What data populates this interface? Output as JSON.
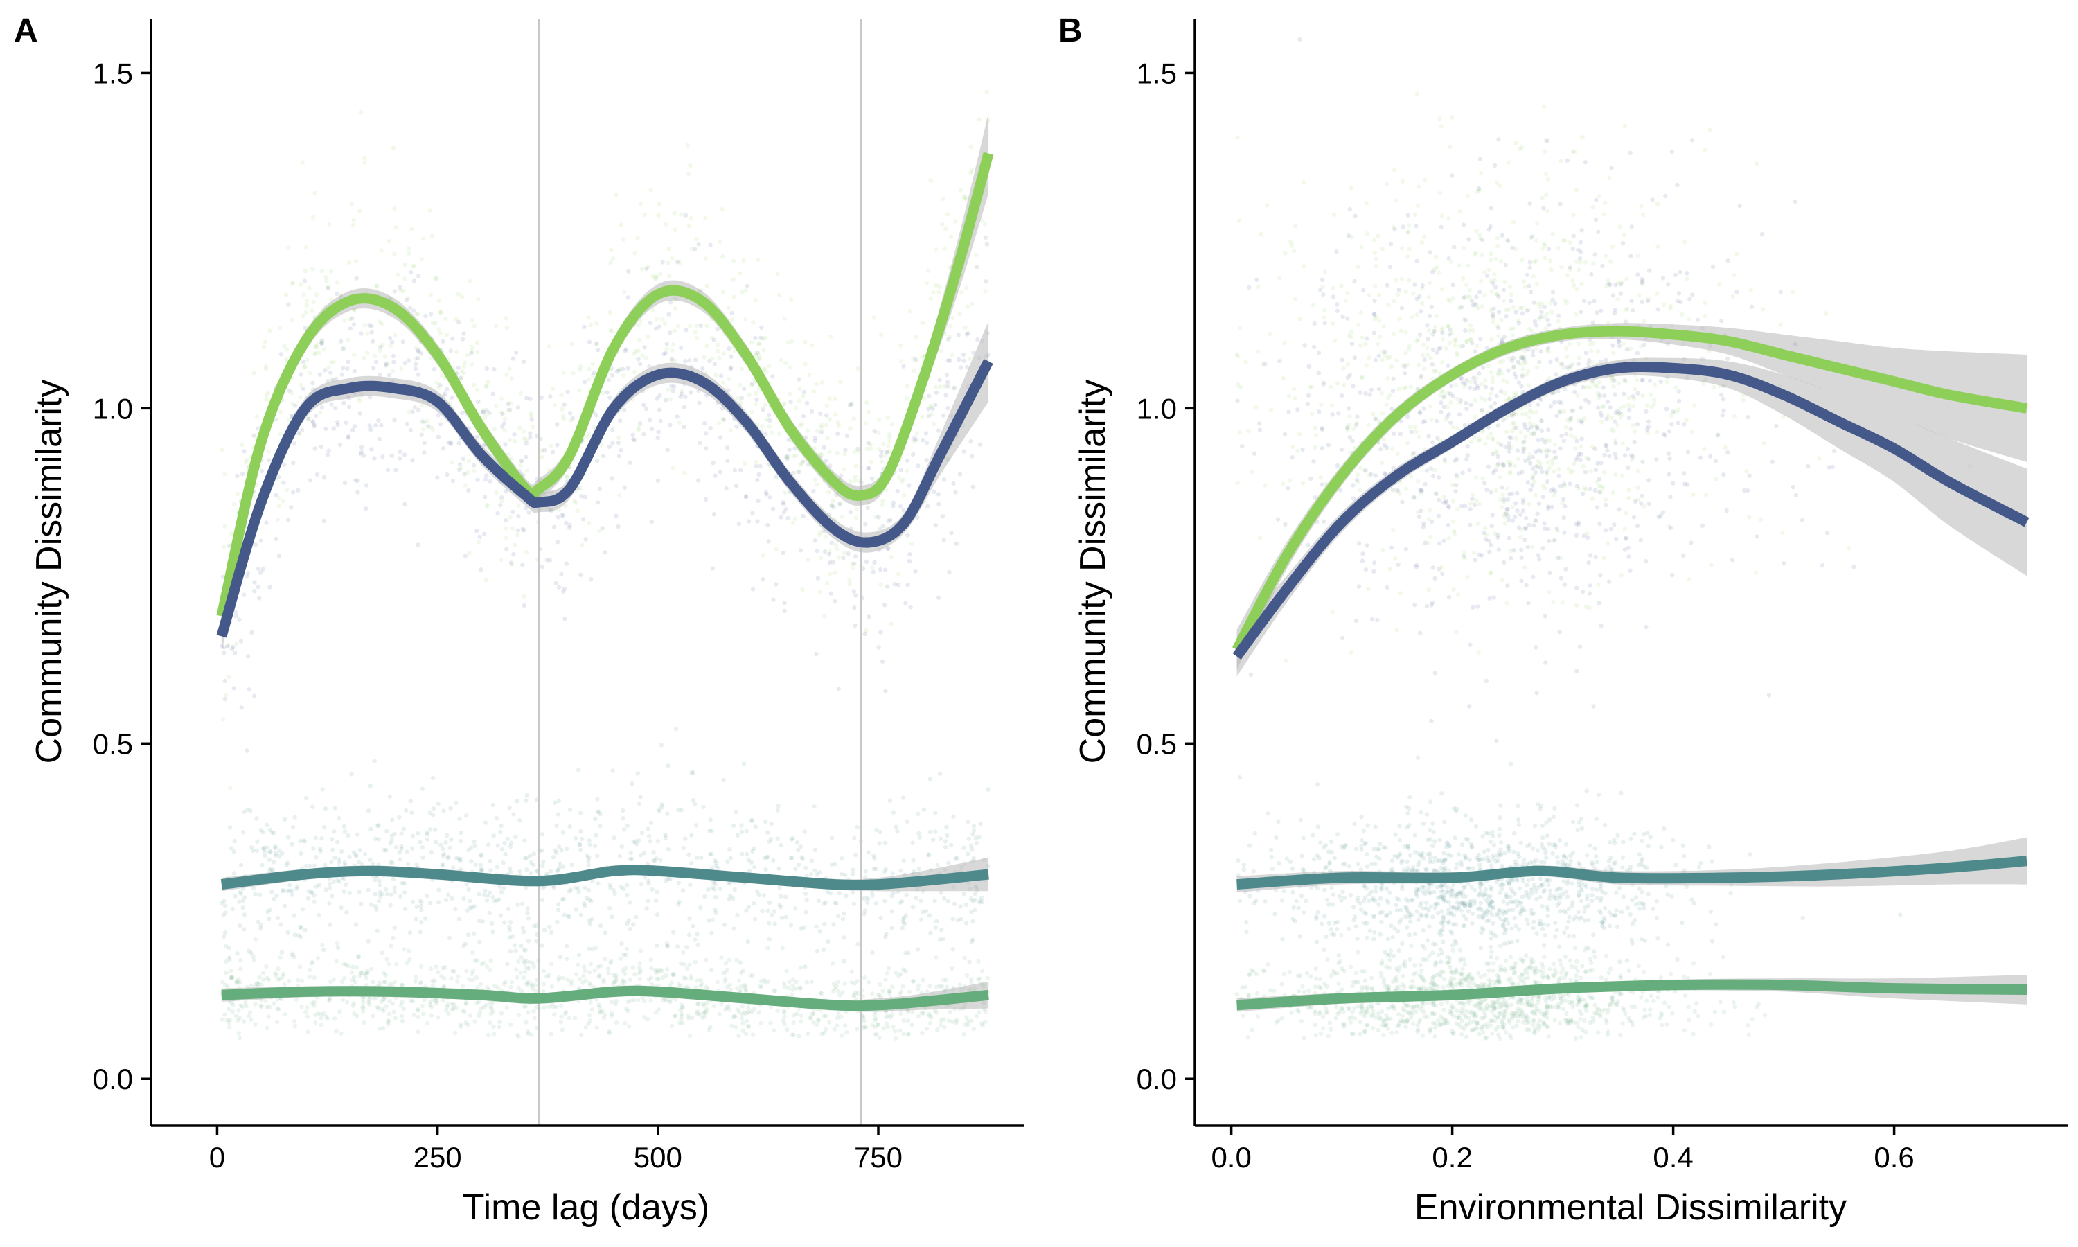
{
  "chart_data": [
    {
      "panel": "A",
      "type": "scatter",
      "xlabel": "Time lag (days)",
      "ylabel": "Community Dissimilarity",
      "xlim": [
        -75,
        915
      ],
      "ylim": [
        -0.07,
        1.58
      ],
      "xticks": [
        0,
        250,
        500,
        750
      ],
      "xtick_labels": [
        "0",
        "250",
        "500",
        "750"
      ],
      "yticks": [
        0.0,
        0.5,
        1.0,
        1.5
      ],
      "ytick_labels": [
        "0.0",
        "0.5",
        "1.0",
        "1.5"
      ],
      "vlines": [
        365,
        730
      ],
      "grid": false,
      "legend": "none",
      "series": [
        {
          "color": "#8ecf5a",
          "x": [
            5,
            50,
            100,
            150,
            200,
            250,
            300,
            350,
            365,
            400,
            450,
            500,
            550,
            600,
            650,
            700,
            730,
            760,
            800,
            840,
            875
          ],
          "y": [
            0.69,
            0.95,
            1.1,
            1.16,
            1.15,
            1.08,
            0.97,
            0.88,
            0.88,
            0.93,
            1.09,
            1.17,
            1.16,
            1.08,
            0.97,
            0.89,
            0.87,
            0.9,
            1.04,
            1.21,
            1.38
          ],
          "band": [
            0.02,
            0.02,
            0.015,
            0.015,
            0.015,
            0.015,
            0.015,
            0.015,
            0.015,
            0.015,
            0.015,
            0.015,
            0.015,
            0.015,
            0.015,
            0.015,
            0.015,
            0.015,
            0.02,
            0.04,
            0.06
          ],
          "cloud": {
            "center": "curve",
            "spread": 0.09,
            "count": 900
          }
        },
        {
          "color": "#44598a",
          "x": [
            5,
            50,
            100,
            150,
            200,
            250,
            300,
            350,
            365,
            400,
            450,
            500,
            550,
            600,
            650,
            700,
            740,
            780,
            820,
            875
          ],
          "y": [
            0.66,
            0.86,
            1.0,
            1.03,
            1.03,
            1.01,
            0.93,
            0.87,
            0.86,
            0.88,
            1.0,
            1.05,
            1.04,
            0.98,
            0.89,
            0.82,
            0.8,
            0.83,
            0.93,
            1.07
          ],
          "band": [
            0.02,
            0.02,
            0.015,
            0.015,
            0.015,
            0.015,
            0.015,
            0.015,
            0.015,
            0.015,
            0.015,
            0.015,
            0.015,
            0.015,
            0.015,
            0.015,
            0.015,
            0.015,
            0.03,
            0.06
          ],
          "cloud": {
            "center": "curve",
            "spread": 0.09,
            "count": 900
          }
        },
        {
          "color": "#4e8a8c",
          "x": [
            5,
            100,
            175,
            250,
            365,
            450,
            500,
            600,
            700,
            750,
            800,
            875
          ],
          "y": [
            0.29,
            0.305,
            0.31,
            0.305,
            0.295,
            0.31,
            0.31,
            0.3,
            0.29,
            0.29,
            0.295,
            0.305
          ],
          "band": [
            0.01,
            0.008,
            0.008,
            0.008,
            0.008,
            0.008,
            0.008,
            0.008,
            0.008,
            0.01,
            0.015,
            0.025
          ],
          "cloud": {
            "center": "curve",
            "spread": 0.06,
            "count": 1100
          }
        },
        {
          "color": "#65ad7c",
          "x": [
            5,
            100,
            200,
            300,
            365,
            450,
            500,
            600,
            700,
            750,
            800,
            875
          ],
          "y": [
            0.125,
            0.13,
            0.13,
            0.125,
            0.12,
            0.13,
            0.13,
            0.12,
            0.11,
            0.11,
            0.115,
            0.125
          ],
          "band": [
            0.01,
            0.008,
            0.008,
            0.008,
            0.008,
            0.008,
            0.008,
            0.008,
            0.008,
            0.01,
            0.012,
            0.02
          ],
          "cloud": {
            "center": "curve",
            "spread": 0.03,
            "count": 1100
          }
        }
      ]
    },
    {
      "panel": "B",
      "type": "scatter",
      "xlabel": "Environmental Dissimilarity",
      "ylabel": "Community Dissimilarity",
      "xlim": [
        -0.033,
        0.757
      ],
      "ylim": [
        -0.07,
        1.58
      ],
      "xticks": [
        0.0,
        0.2,
        0.4,
        0.6
      ],
      "xtick_labels": [
        "0.0",
        "0.2",
        "0.4",
        "0.6"
      ],
      "yticks": [
        0.0,
        0.5,
        1.0,
        1.5
      ],
      "ytick_labels": [
        "0.0",
        "0.5",
        "1.0",
        "1.5"
      ],
      "grid": false,
      "legend": "none",
      "series": [
        {
          "color": "#8ecf5a",
          "x": [
            0.005,
            0.05,
            0.1,
            0.15,
            0.2,
            0.25,
            0.3,
            0.35,
            0.4,
            0.45,
            0.5,
            0.55,
            0.6,
            0.65,
            0.72
          ],
          "y": [
            0.64,
            0.78,
            0.9,
            0.99,
            1.05,
            1.09,
            1.11,
            1.115,
            1.11,
            1.1,
            1.08,
            1.06,
            1.04,
            1.02,
            1.0
          ],
          "band": [
            0.03,
            0.02,
            0.015,
            0.012,
            0.01,
            0.01,
            0.01,
            0.012,
            0.015,
            0.02,
            0.03,
            0.04,
            0.05,
            0.065,
            0.08
          ],
          "cloud": {
            "center": [
              0.24,
              1.05
            ],
            "spreadX": 0.1,
            "spreadY": 0.15,
            "count": 900
          }
        },
        {
          "color": "#44598a",
          "x": [
            0.005,
            0.05,
            0.1,
            0.15,
            0.2,
            0.25,
            0.3,
            0.35,
            0.4,
            0.45,
            0.5,
            0.55,
            0.6,
            0.65,
            0.72
          ],
          "y": [
            0.63,
            0.73,
            0.83,
            0.9,
            0.95,
            1.0,
            1.04,
            1.06,
            1.06,
            1.05,
            1.02,
            0.98,
            0.94,
            0.89,
            0.83
          ],
          "band": [
            0.03,
            0.02,
            0.015,
            0.012,
            0.01,
            0.01,
            0.01,
            0.012,
            0.015,
            0.02,
            0.03,
            0.04,
            0.05,
            0.065,
            0.08
          ],
          "cloud": {
            "center": [
              0.26,
              0.98
            ],
            "spreadX": 0.1,
            "spreadY": 0.16,
            "count": 900
          }
        },
        {
          "color": "#4e8a8c",
          "x": [
            0.005,
            0.1,
            0.2,
            0.28,
            0.35,
            0.45,
            0.55,
            0.65,
            0.72
          ],
          "y": [
            0.29,
            0.3,
            0.3,
            0.31,
            0.3,
            0.3,
            0.305,
            0.315,
            0.325
          ],
          "band": [
            0.012,
            0.01,
            0.008,
            0.008,
            0.01,
            0.012,
            0.018,
            0.025,
            0.035
          ],
          "cloud": {
            "center": [
              0.22,
              0.29
            ],
            "spreadX": 0.09,
            "spreadY": 0.05,
            "count": 1100
          }
        },
        {
          "color": "#65ad7c",
          "x": [
            0.005,
            0.1,
            0.2,
            0.3,
            0.4,
            0.5,
            0.6,
            0.72
          ],
          "y": [
            0.11,
            0.12,
            0.125,
            0.135,
            0.14,
            0.14,
            0.135,
            0.133
          ],
          "band": [
            0.01,
            0.008,
            0.006,
            0.006,
            0.008,
            0.01,
            0.015,
            0.022
          ],
          "cloud": {
            "center": [
              0.22,
              0.12
            ],
            "spreadX": 0.09,
            "spreadY": 0.03,
            "count": 1100
          }
        }
      ]
    }
  ]
}
